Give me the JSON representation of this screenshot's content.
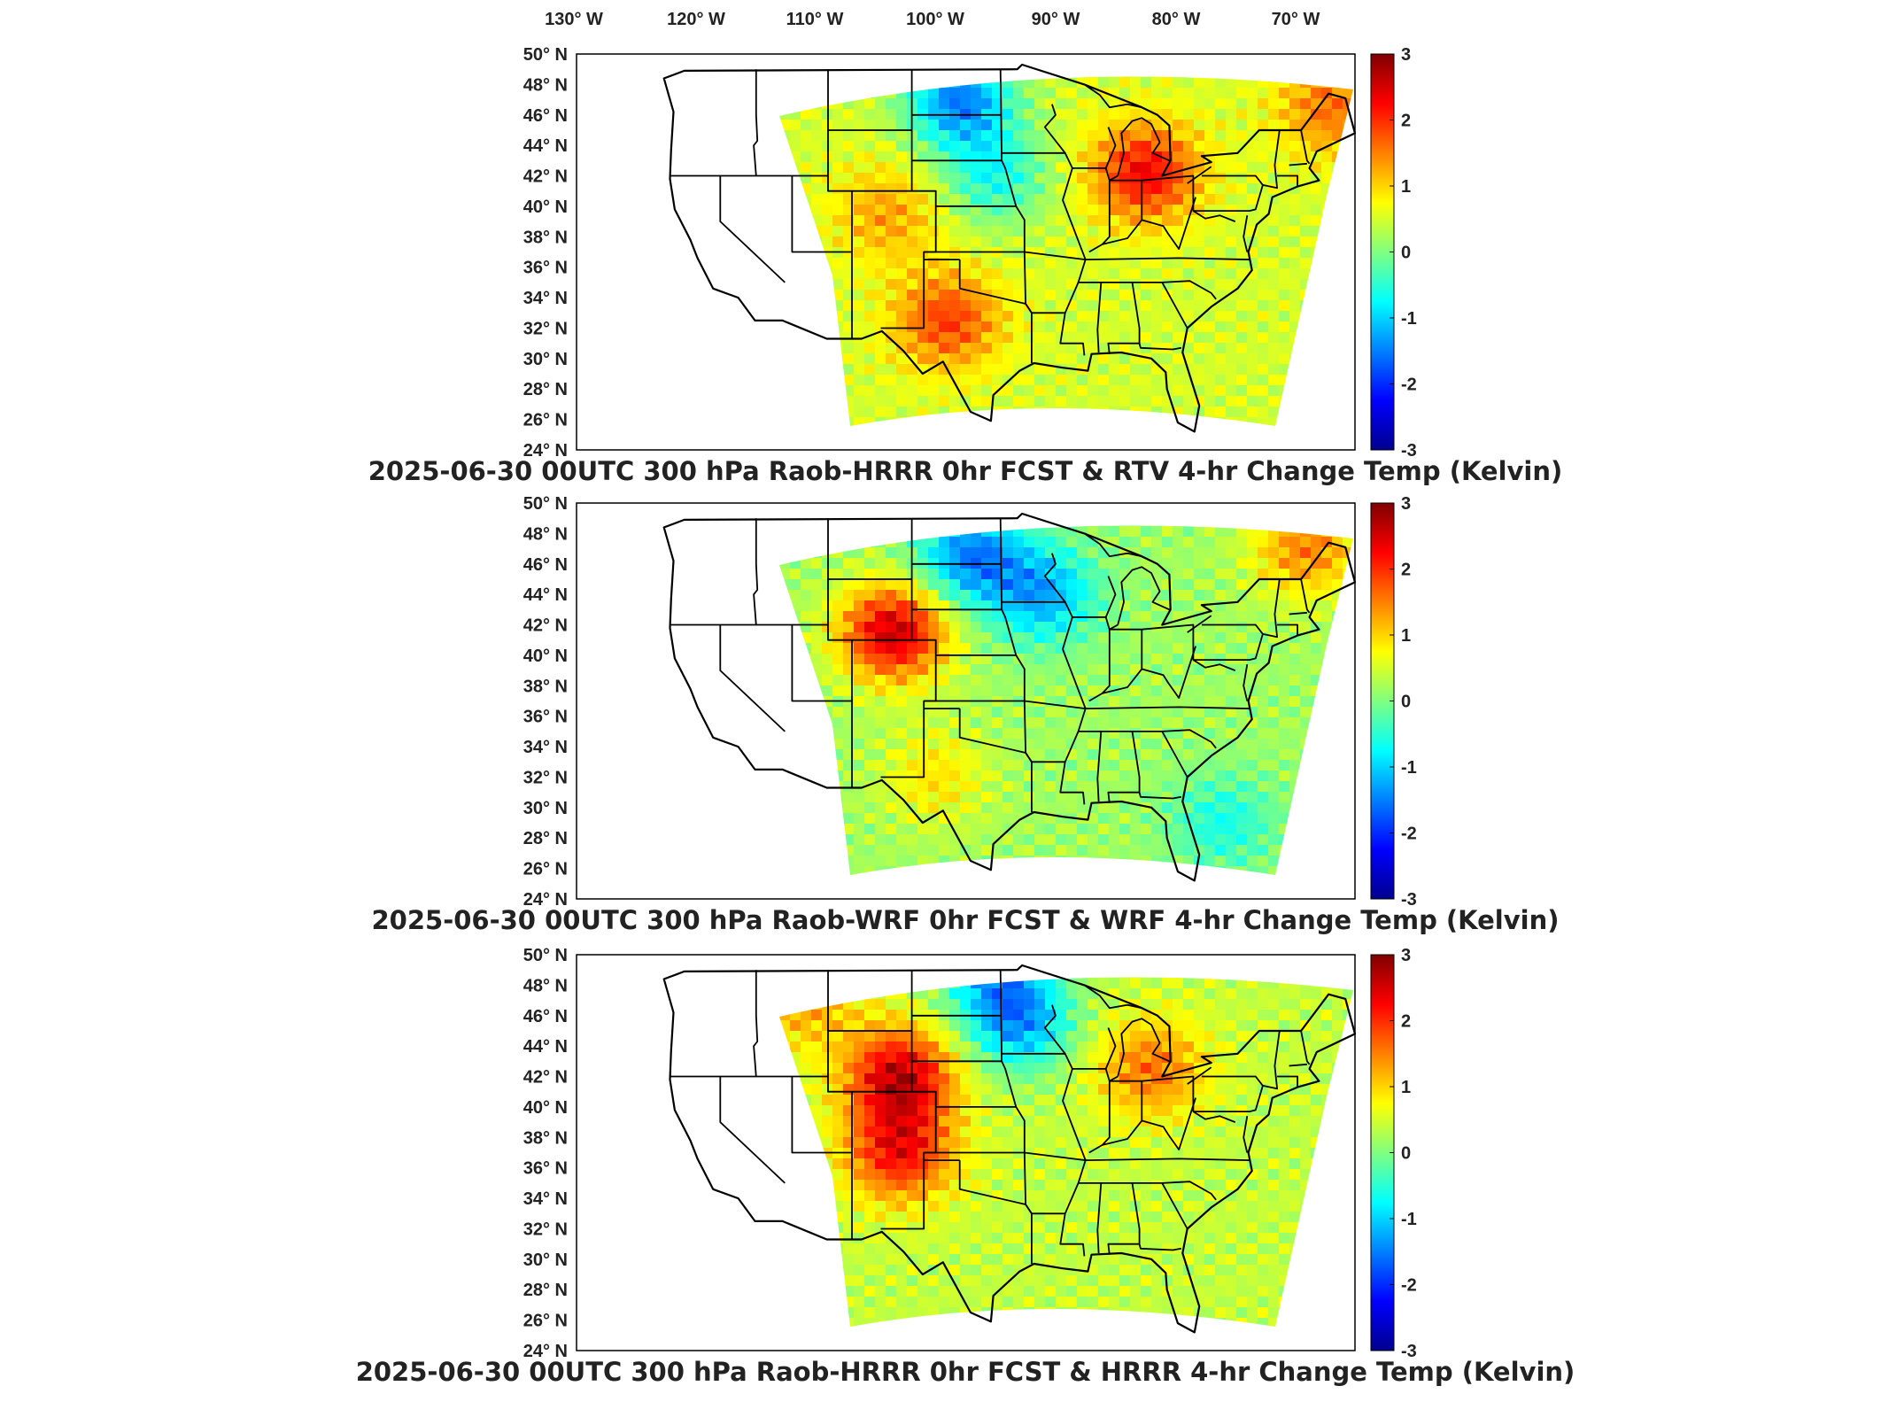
{
  "top_axis": {
    "lon_labels": [
      "130° W",
      "120° W",
      "110° W",
      "100° W",
      "90° W",
      "80° W",
      "70° W"
    ],
    "lon_values": [
      -130,
      -120,
      -110,
      -100,
      -90,
      -80,
      -70
    ]
  },
  "colorbar": {
    "min": -3,
    "max": 3,
    "tick_labels": [
      "3",
      "2",
      "1",
      "0",
      "-1",
      "-2",
      "-3"
    ],
    "tick_values": [
      3,
      2,
      1,
      0,
      -1,
      -2,
      -3
    ],
    "colormap": [
      "#00008f",
      "#0000ff",
      "#00ffff",
      "#80ff80",
      "#ffff00",
      "#ff0000",
      "#800000"
    ]
  },
  "lat_labels": [
    "50° N",
    "48° N",
    "46° N",
    "44° N",
    "42° N",
    "40° N",
    "38° N",
    "36° N",
    "34° N",
    "32° N",
    "30° N",
    "28° N",
    "26° N",
    "24° N"
  ],
  "lat_values": [
    50,
    48,
    46,
    44,
    42,
    40,
    38,
    36,
    34,
    32,
    30,
    28,
    26,
    24
  ],
  "lon_range": [
    -132,
    -67
  ],
  "lat_range": [
    24,
    50
  ],
  "colors": {
    "frame": "#000000",
    "boundary": "#000000",
    "background": "#ffffff"
  },
  "panels": [
    {
      "title": "2025-06-30 00UTC 300 hPa Raob-HRRR 0hr FCST & RTV 4-hr Change Temp (Kelvin)",
      "field_summary": {
        "base": 0.5,
        "hotspots": [
          {
            "lon": -84.5,
            "lat": 42.2,
            "value": 2.3
          },
          {
            "lon": -101,
            "lat": 32.5,
            "value": 1.9
          },
          {
            "lon": -69,
            "lat": 46.5,
            "value": 1.6
          },
          {
            "lon": -106,
            "lat": 39.5,
            "value": 1.3
          }
        ],
        "coldspots": [
          {
            "lon": -100,
            "lat": 47,
            "value": -1.5
          },
          {
            "lon": -97,
            "lat": 42,
            "value": -0.6
          }
        ]
      }
    },
    {
      "title": "2025-06-30 00UTC 300 hPa Raob-WRF 0hr FCST & WRF 4-hr Change Temp (Kelvin)",
      "field_summary": {
        "base": 0.2,
        "hotspots": [
          {
            "lon": -105.5,
            "lat": 41.5,
            "value": 2.6
          },
          {
            "lon": -71,
            "lat": 47,
            "value": 1.5
          },
          {
            "lon": -102,
            "lat": 32,
            "value": 0.9
          }
        ],
        "coldspots": [
          {
            "lon": -99,
            "lat": 46.5,
            "value": -1.5
          },
          {
            "lon": -93,
            "lat": 44,
            "value": -1.2
          },
          {
            "lon": -78,
            "lat": 29,
            "value": -0.6
          }
        ]
      }
    },
    {
      "title": "2025-06-30 00UTC 300 hPa Raob-HRRR 0hr FCST & HRRR 4-hr Change Temp (Kelvin)",
      "field_summary": {
        "base": 0.4,
        "hotspots": [
          {
            "lon": -105,
            "lat": 42,
            "value": 2.6
          },
          {
            "lon": -105,
            "lat": 37,
            "value": 2.2
          },
          {
            "lon": -84,
            "lat": 42.5,
            "value": 1.6
          },
          {
            "lon": -113,
            "lat": 47,
            "value": 1.3
          }
        ],
        "coldspots": [
          {
            "lon": -95,
            "lat": 45.5,
            "value": -1.2
          },
          {
            "lon": -97,
            "lat": 49,
            "value": -1.0
          }
        ]
      }
    }
  ]
}
